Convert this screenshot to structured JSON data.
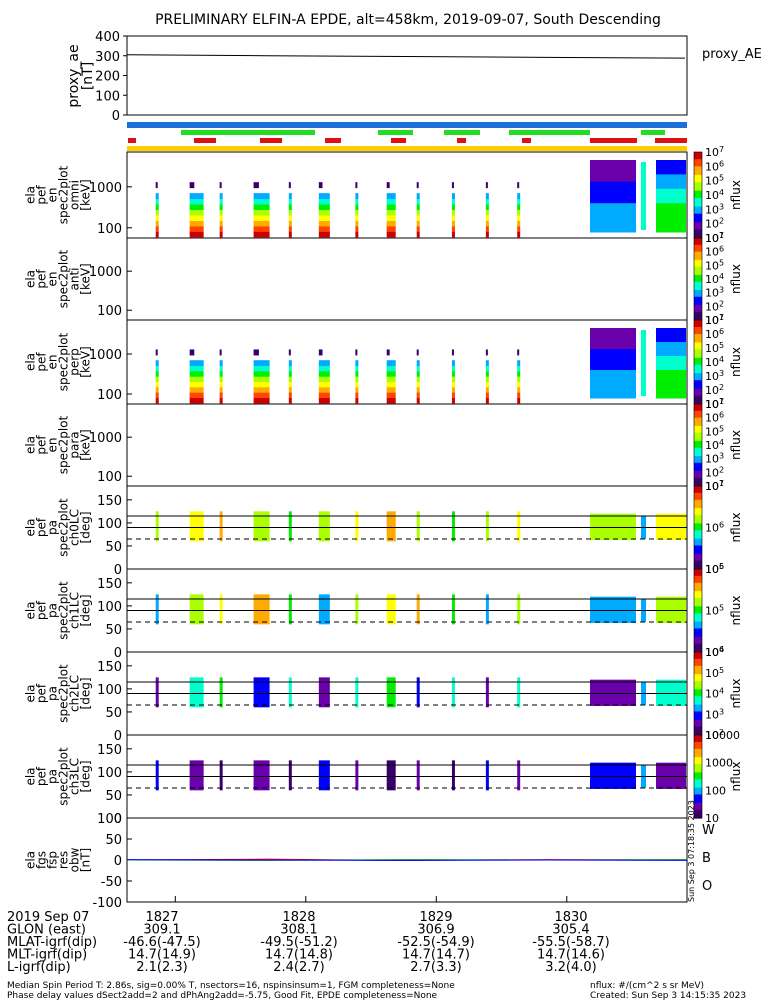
{
  "title": "PRELIMINARY ELFIN-A EPDE, alt=458km, 2019-09-07, South Descending",
  "colors": {
    "bar_blue": "#1e6fd9",
    "bar_green": "#22dd22",
    "bar_red": "#dd1111",
    "bar_yellow": "#ffcc00",
    "colorbar": [
      "#3a006a",
      "#6a00aa",
      "#0000ff",
      "#00aaff",
      "#00ffcc",
      "#00ee00",
      "#aaff00",
      "#ffff00",
      "#ffaa00",
      "#ff4400",
      "#cc0000"
    ]
  },
  "panels": {
    "ae": {
      "label_lines": [
        "proxy_ae",
        "[nT]"
      ],
      "right_label": "proxy_AE"
    },
    "omni": {
      "label_lines": [
        "ela",
        "pef",
        "en",
        "spec2plot",
        "omni",
        "[keV]"
      ],
      "cbar_label": "nflux"
    },
    "anti": {
      "label_lines": [
        "ela",
        "pef",
        "en",
        "spec2plot",
        "anti",
        "[keV]"
      ],
      "cbar_label": "nflux"
    },
    "perp": {
      "label_lines": [
        "ela",
        "pef",
        "en",
        "spec2plot",
        "perp",
        "[keV]"
      ],
      "cbar_label": "nflux"
    },
    "para": {
      "label_lines": [
        "ela",
        "pef",
        "en",
        "spec2plot",
        "para",
        "[keV]"
      ],
      "cbar_label": "nflux"
    },
    "ch0": {
      "label_lines": [
        "ela",
        "pef",
        "pa",
        "spec2plot",
        "ch0LC",
        "[deg]"
      ],
      "cbar_label": "nflux"
    },
    "ch1": {
      "label_lines": [
        "ela",
        "pef",
        "pa",
        "spec2plot",
        "ch1LC",
        "[deg]"
      ],
      "cbar_label": "nflux"
    },
    "ch2": {
      "label_lines": [
        "ela",
        "pef",
        "pa",
        "spec2plot",
        "ch2LC",
        "[deg]"
      ],
      "cbar_label": "nflux"
    },
    "ch3": {
      "label_lines": [
        "ela",
        "pef",
        "pa",
        "spec2plot",
        "ch3LC",
        "[deg]"
      ],
      "cbar_label": "nflux"
    },
    "fgs": {
      "label_lines": [
        "ela",
        "fgs",
        "fsp",
        "res",
        "obw",
        "[nT]"
      ],
      "legend": [
        "W",
        "B",
        "O"
      ],
      "legend_colors": [
        "#ff0000",
        "#00aa00",
        "#0000ff"
      ]
    }
  },
  "side_stamp": "Sun Sep 3 07:18:35 2023",
  "footer": {
    "row_labels": [
      "2019 Sep 07",
      "GLON (east)",
      "MLAT-igrf(dip)",
      "MLT-igrf(dip)",
      "L-igrf(dip)"
    ],
    "columns": [
      [
        "1827",
        "309.1",
        "-46.6(-47.5)",
        "14.7(14.9)",
        "2.1(2.3)"
      ],
      [
        "1828",
        "308.1",
        "-49.5(-51.2)",
        "14.7(14.8)",
        "2.4(2.7)"
      ],
      [
        "1829",
        "306.9",
        "-52.5(-54.9)",
        "14.7(14.7)",
        "2.7(3.3)"
      ],
      [
        "1830",
        "305.4",
        "-55.5(-58.7)",
        "14.7(14.6)",
        "3.2(4.0)"
      ]
    ],
    "note_line1": "Median Spin Period T: 2.86s, sig=0.00% T, nsectors=16, nspinsinsum=1, FGM completeness=None",
    "note_line2": "Phase delay values dSect2add=2 and dPhAng2add=-5.75, Good Fit, EPDE completeness=None",
    "units_note": "nflux: #/(cm^2 s sr MeV)",
    "created": "Created: Sun Sep  3 14:15:35 2023"
  },
  "chart_data": [
    {
      "type": "line",
      "panel": "proxy_ae",
      "ylabel": "proxy_ae [nT]",
      "ylim": [
        0,
        400
      ],
      "yticks": [
        0,
        100,
        200,
        300,
        400
      ],
      "x_minutes": [
        0,
        1,
        2,
        3,
        4
      ],
      "values": [
        305,
        300,
        296,
        292,
        288
      ]
    },
    {
      "type": "heatmap",
      "panel": "energy spectrograms",
      "xtick_labels": [
        "1827",
        "1828",
        "1829",
        "1830"
      ],
      "ylabel": "[keV]",
      "y_scale": "log",
      "ytick_labels": [
        "100",
        "1000"
      ],
      "colorbar_tick_labels": [
        "10^1",
        "10^2",
        "10^3",
        "10^4",
        "10^5",
        "10^6",
        "10^7"
      ],
      "colorbar_label": "nflux"
    },
    {
      "type": "heatmap",
      "panel": "pitch-angle spectrograms",
      "ylabel": "[deg]",
      "ylim": [
        0,
        180
      ],
      "yticks": [
        0,
        50,
        100,
        150
      ],
      "reference_lines_deg": [
        65,
        90,
        115
      ],
      "colorbar_tick_labels": {
        "ch0LC": [
          "10^5",
          "10^6",
          "10^7"
        ],
        "ch1LC": [
          "10^4",
          "10^5",
          "10^6"
        ],
        "ch2LC": [
          "10^2",
          "10^3",
          "10^4",
          "10^5",
          "10^6"
        ],
        "ch3LC": [
          "10",
          "100",
          "1000",
          "10000"
        ]
      }
    },
    {
      "type": "line",
      "panel": "fgs fsp res obw",
      "ylabel": "[nT]",
      "ylim": [
        -100,
        100
      ],
      "yticks": [
        -100,
        -50,
        0,
        50,
        100
      ],
      "series": [
        {
          "name": "W",
          "values": [
            0,
            2,
            -1,
            1,
            0
          ]
        },
        {
          "name": "B",
          "values": [
            0,
            -1,
            1,
            0,
            1
          ]
        },
        {
          "name": "O",
          "values": [
            1,
            0,
            -1,
            0,
            -1
          ]
        }
      ]
    }
  ]
}
